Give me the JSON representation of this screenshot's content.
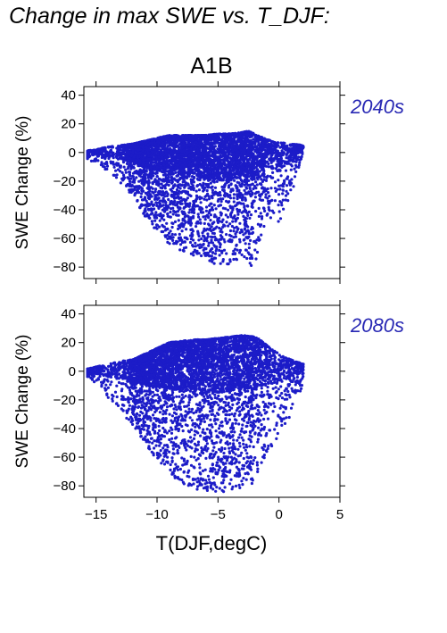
{
  "title": "Change in max SWE vs. T_DJF:",
  "scenario": "A1B",
  "xlabel": "T(DJF,degC)",
  "ylabel": "SWE Change (%)",
  "point_color": "#1c1cc8",
  "label_color": "#2828b4",
  "chart_data": [
    {
      "type": "scatter",
      "panel_label": "2040s",
      "xlim": [
        -16,
        5
      ],
      "ylim": [
        -88,
        46
      ],
      "xticks": [
        -15,
        -10,
        -5,
        0,
        5
      ],
      "yticks": [
        40,
        20,
        0,
        -20,
        -40,
        -60,
        -80
      ],
      "grid": false,
      "envelope": {
        "x": [
          -16,
          -15,
          -14,
          -13,
          -12,
          -11,
          -10,
          -9,
          -8,
          -7,
          -6,
          -5,
          -4,
          -3,
          -2.5,
          -2,
          -1.5,
          -1,
          0,
          1,
          2
        ],
        "y_max": [
          1,
          2,
          4,
          5,
          6,
          8,
          10,
          12,
          12,
          12,
          12,
          13,
          13,
          14,
          15,
          13,
          11,
          9,
          7,
          6,
          5
        ],
        "y_min": [
          -3,
          -8,
          -15,
          -22,
          -30,
          -45,
          -55,
          -65,
          -70,
          -72,
          -75,
          -82,
          -78,
          -72,
          -78,
          -80,
          -60,
          -45,
          -50,
          -30,
          0
        ]
      }
    },
    {
      "type": "scatter",
      "panel_label": "2080s",
      "xlim": [
        -16,
        5
      ],
      "ylim": [
        -88,
        46
      ],
      "xticks": [
        -15,
        -10,
        -5,
        0,
        5
      ],
      "yticks": [
        40,
        20,
        0,
        -20,
        -40,
        -60,
        -80
      ],
      "grid": false,
      "envelope": {
        "x": [
          -16,
          -15,
          -14,
          -13,
          -12,
          -11,
          -10,
          -9,
          -8,
          -7,
          -6,
          -5,
          -4,
          -3,
          -2,
          -1.5,
          -1,
          0,
          1,
          2
        ],
        "y_max": [
          1,
          3,
          5,
          7,
          8,
          12,
          16,
          20,
          21,
          22,
          22,
          23,
          24,
          25,
          24,
          22,
          18,
          12,
          8,
          5
        ],
        "y_min": [
          -2,
          -10,
          -20,
          -28,
          -38,
          -50,
          -62,
          -72,
          -78,
          -82,
          -84,
          -86,
          -84,
          -82,
          -78,
          -70,
          -60,
          -45,
          -30,
          -10
        ]
      }
    }
  ]
}
